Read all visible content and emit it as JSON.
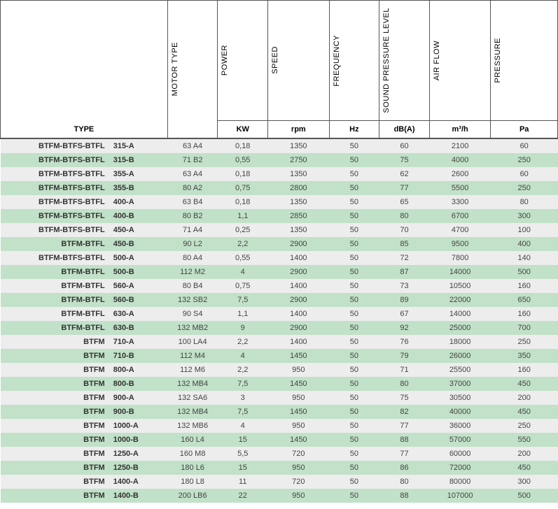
{
  "headers": {
    "type_label": "TYPE",
    "cols": [
      {
        "label": "MOTOR TYPE",
        "unit": ""
      },
      {
        "label": "POWER",
        "unit": "KW"
      },
      {
        "label": "SPEED",
        "unit": "rpm"
      },
      {
        "label": "FREQUENCY",
        "unit": "Hz"
      },
      {
        "label": "SOUND PRESSURE LEVEL",
        "unit": "dB(A)"
      },
      {
        "label": "AIR FLOW",
        "unit": "m³/h"
      },
      {
        "label": "PRESSURE",
        "unit": "Pa"
      }
    ]
  },
  "col_widths": [
    "20%",
    "10%",
    "9%",
    "9%",
    "11%",
    "9%",
    "9%",
    "11%",
    "12%"
  ],
  "rows": [
    {
      "series": "BTFM-BTFS-BTFL",
      "model": "315-A",
      "motor": "63 A4",
      "power": "0,18",
      "speed": "1350",
      "freq": "50",
      "sound": "60",
      "airflow": "2100",
      "pressure": "60"
    },
    {
      "series": "BTFM-BTFS-BTFL",
      "model": "315-B",
      "motor": "71 B2",
      "power": "0,55",
      "speed": "2750",
      "freq": "50",
      "sound": "75",
      "airflow": "4000",
      "pressure": "250"
    },
    {
      "series": "BTFM-BTFS-BTFL",
      "model": "355-A",
      "motor": "63 A4",
      "power": "0,18",
      "speed": "1350",
      "freq": "50",
      "sound": "62",
      "airflow": "2600",
      "pressure": "60"
    },
    {
      "series": "BTFM-BTFS-BTFL",
      "model": "355-B",
      "motor": "80 A2",
      "power": "0,75",
      "speed": "2800",
      "freq": "50",
      "sound": "77",
      "airflow": "5500",
      "pressure": "250"
    },
    {
      "series": "BTFM-BTFS-BTFL",
      "model": "400-A",
      "motor": "63 B4",
      "power": "0,18",
      "speed": "1350",
      "freq": "50",
      "sound": "65",
      "airflow": "3300",
      "pressure": "80"
    },
    {
      "series": "BTFM-BTFS-BTFL",
      "model": "400-B",
      "motor": "80 B2",
      "power": "1,1",
      "speed": "2850",
      "freq": "50",
      "sound": "80",
      "airflow": "6700",
      "pressure": "300"
    },
    {
      "series": "BTFM-BTFS-BTFL",
      "model": "450-A",
      "motor": "71 A4",
      "power": "0,25",
      "speed": "1350",
      "freq": "50",
      "sound": "70",
      "airflow": "4700",
      "pressure": "100"
    },
    {
      "series": "BTFM-BTFL",
      "model": "450-B",
      "motor": "90 L2",
      "power": "2,2",
      "speed": "2900",
      "freq": "50",
      "sound": "85",
      "airflow": "9500",
      "pressure": "400"
    },
    {
      "series": "BTFM-BTFS-BTFL",
      "model": "500-A",
      "motor": "80 A4",
      "power": "0,55",
      "speed": "1400",
      "freq": "50",
      "sound": "72",
      "airflow": "7800",
      "pressure": "140"
    },
    {
      "series": "BTFM-BTFL",
      "model": "500-B",
      "motor": "112 M2",
      "power": "4",
      "speed": "2900",
      "freq": "50",
      "sound": "87",
      "airflow": "14000",
      "pressure": "500"
    },
    {
      "series": "BTFM-BTFL",
      "model": "560-A",
      "motor": "80 B4",
      "power": "0,75",
      "speed": "1400",
      "freq": "50",
      "sound": "73",
      "airflow": "10500",
      "pressure": "160"
    },
    {
      "series": "BTFM-BTFL",
      "model": "560-B",
      "motor": "132 SB2",
      "power": "7,5",
      "speed": "2900",
      "freq": "50",
      "sound": "89",
      "airflow": "22000",
      "pressure": "650"
    },
    {
      "series": "BTFM-BTFL",
      "model": "630-A",
      "motor": "90 S4",
      "power": "1,1",
      "speed": "1400",
      "freq": "50",
      "sound": "67",
      "airflow": "14000",
      "pressure": "160"
    },
    {
      "series": "BTFM-BTFL",
      "model": "630-B",
      "motor": "132 MB2",
      "power": "9",
      "speed": "2900",
      "freq": "50",
      "sound": "92",
      "airflow": "25000",
      "pressure": "700"
    },
    {
      "series": "BTFM",
      "model": "710-A",
      "motor": "100 LA4",
      "power": "2,2",
      "speed": "1400",
      "freq": "50",
      "sound": "76",
      "airflow": "18000",
      "pressure": "250"
    },
    {
      "series": "BTFM",
      "model": "710-B",
      "motor": "112 M4",
      "power": "4",
      "speed": "1450",
      "freq": "50",
      "sound": "79",
      "airflow": "26000",
      "pressure": "350"
    },
    {
      "series": "BTFM",
      "model": "800-A",
      "motor": "112 M6",
      "power": "2,2",
      "speed": "950",
      "freq": "50",
      "sound": "71",
      "airflow": "25500",
      "pressure": "160"
    },
    {
      "series": "BTFM",
      "model": "800-B",
      "motor": "132 MB4",
      "power": "7,5",
      "speed": "1450",
      "freq": "50",
      "sound": "80",
      "airflow": "37000",
      "pressure": "450"
    },
    {
      "series": "BTFM",
      "model": "900-A",
      "motor": "132 SA6",
      "power": "3",
      "speed": "950",
      "freq": "50",
      "sound": "75",
      "airflow": "30500",
      "pressure": "200"
    },
    {
      "series": "BTFM",
      "model": "900-B",
      "motor": "132 MB4",
      "power": "7,5",
      "speed": "1450",
      "freq": "50",
      "sound": "82",
      "airflow": "40000",
      "pressure": "450"
    },
    {
      "series": "BTFM",
      "model": "1000-A",
      "motor": "132 MB6",
      "power": "4",
      "speed": "950",
      "freq": "50",
      "sound": "77",
      "airflow": "36000",
      "pressure": "250"
    },
    {
      "series": "BTFM",
      "model": "1000-B",
      "motor": "160 L4",
      "power": "15",
      "speed": "1450",
      "freq": "50",
      "sound": "88",
      "airflow": "57000",
      "pressure": "550"
    },
    {
      "series": "BTFM",
      "model": "1250-A",
      "motor": "160 M8",
      "power": "5,5",
      "speed": "720",
      "freq": "50",
      "sound": "77",
      "airflow": "60000",
      "pressure": "200"
    },
    {
      "series": "BTFM",
      "model": "1250-B",
      "motor": "180 L6",
      "power": "15",
      "speed": "950",
      "freq": "50",
      "sound": "86",
      "airflow": "72000",
      "pressure": "450"
    },
    {
      "series": "BTFM",
      "model": "1400-A",
      "motor": "180 L8",
      "power": "11",
      "speed": "720",
      "freq": "50",
      "sound": "80",
      "airflow": "80000",
      "pressure": "300"
    },
    {
      "series": "BTFM",
      "model": "1400-B",
      "motor": "200 LB6",
      "power": "22",
      "speed": "950",
      "freq": "50",
      "sound": "88",
      "airflow": "107000",
      "pressure": "500"
    }
  ]
}
